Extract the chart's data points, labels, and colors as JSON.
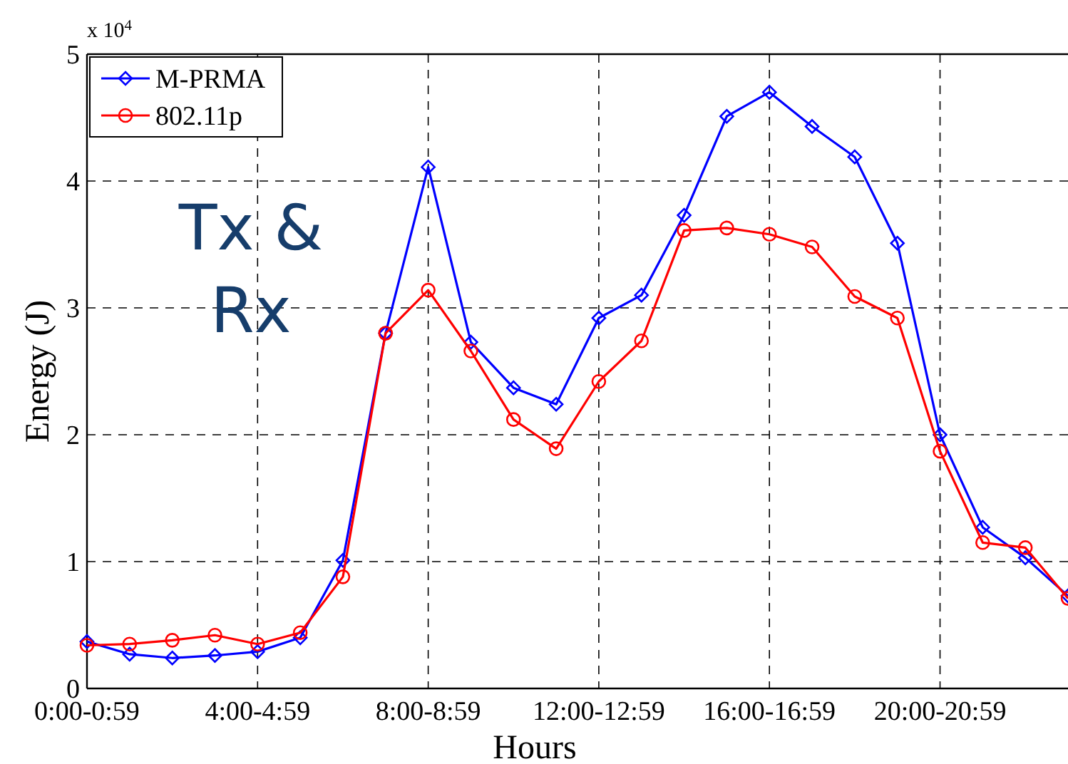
{
  "chart_data": {
    "type": "line",
    "xlabel": "Hours",
    "ylabel": "Energy (J)",
    "categories": [
      "0:00-0:59",
      null,
      null,
      null,
      "4:00-4:59",
      null,
      null,
      null,
      "8:00-8:59",
      null,
      null,
      null,
      "12:00-12:59",
      null,
      null,
      null,
      "16:00-16:59",
      null,
      null,
      null,
      "20:00-20:59",
      null,
      null,
      null
    ],
    "series": [
      {
        "name": "M-PRMA",
        "color": "#0000ff",
        "marker": "diamond",
        "values": [
          0.37,
          0.27,
          0.24,
          0.26,
          0.29,
          0.4,
          1.01,
          2.8,
          4.11,
          2.73,
          2.37,
          2.24,
          2.92,
          3.1,
          3.73,
          4.51,
          4.7,
          4.43,
          4.19,
          3.51,
          2.0,
          1.27,
          1.03,
          0.73
        ]
      },
      {
        "name": "802.11p",
        "color": "#ff0000",
        "marker": "circle",
        "values": [
          0.34,
          0.35,
          0.38,
          0.42,
          0.35,
          0.44,
          0.88,
          2.8,
          3.14,
          2.66,
          2.12,
          1.89,
          2.42,
          2.74,
          3.61,
          3.63,
          3.58,
          3.48,
          3.09,
          2.92,
          1.87,
          1.15,
          1.11,
          0.71
        ]
      }
    ],
    "ylim": [
      0,
      5
    ],
    "yticks": [
      0,
      1,
      2,
      3,
      4,
      5
    ],
    "grid": true,
    "legend": "top left",
    "line_style": "solid",
    "annotations": [
      "x 10$^{4}$",
      "Tx & Rx"
    ]
  }
}
